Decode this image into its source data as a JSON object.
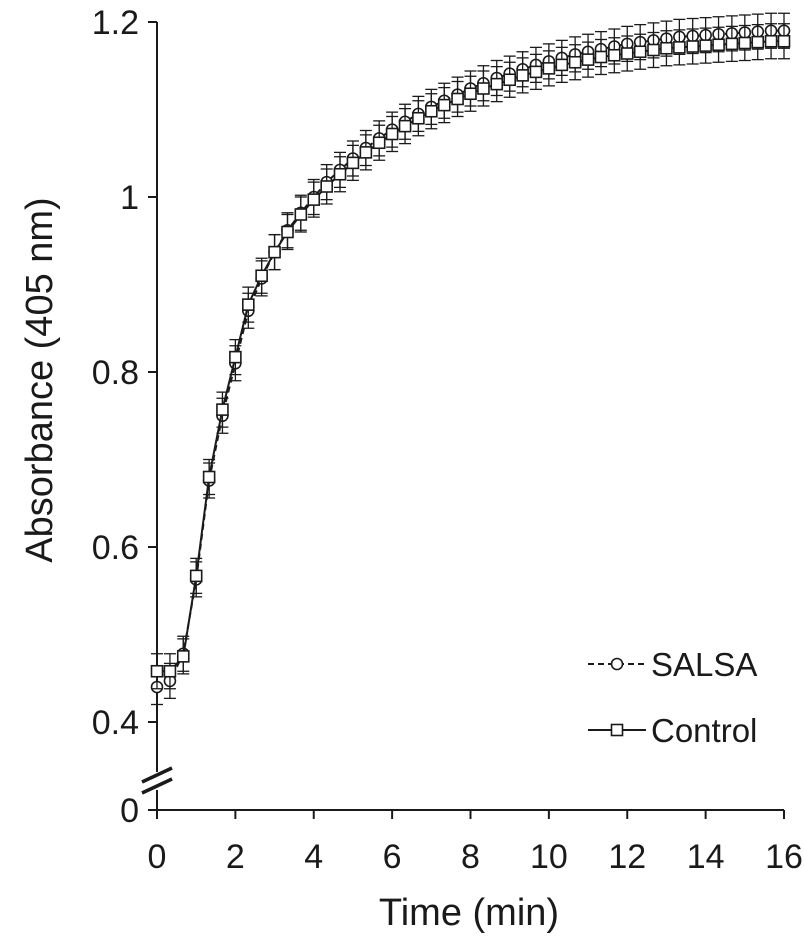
{
  "chart_data": {
    "type": "line",
    "title": "",
    "xlabel": "Time (min)",
    "ylabel": "Absorbance (405 nm)",
    "xlim": [
      0,
      16
    ],
    "ylim": [
      0.4,
      1.2
    ],
    "x_ticks": [
      "0",
      "2",
      "4",
      "6",
      "8",
      "10",
      "12",
      "14",
      "16"
    ],
    "y_ticks": [
      "0",
      "0.4",
      "0.6",
      "0.8",
      "1",
      "1.2"
    ],
    "y_axis_break": "between 0 and 0.4",
    "grid": false,
    "legend_position": "bottom-right",
    "x": [
      0,
      0.33,
      0.67,
      1,
      1.33,
      1.67,
      2,
      2.33,
      2.67,
      3,
      3.33,
      3.67,
      4,
      4.33,
      4.67,
      5,
      5.33,
      5.67,
      6,
      6.33,
      6.67,
      7,
      7.33,
      7.67,
      8,
      8.33,
      8.67,
      9,
      9.33,
      9.67,
      10,
      10.33,
      10.67,
      11,
      11.33,
      11.67,
      12,
      12.33,
      12.67,
      13,
      13.33,
      13.67,
      14,
      14.33,
      14.67,
      15,
      15.33,
      15.67,
      16
    ],
    "series": [
      {
        "name": "SALSA",
        "line_style": "dashed",
        "marker": "circle",
        "values": [
          0.44,
          0.447,
          0.478,
          0.563,
          0.676,
          0.75,
          0.81,
          0.87,
          0.907,
          0.937,
          0.962,
          0.982,
          1.0,
          1.017,
          1.031,
          1.044,
          1.056,
          1.067,
          1.077,
          1.086,
          1.095,
          1.103,
          1.11,
          1.117,
          1.124,
          1.13,
          1.136,
          1.141,
          1.146,
          1.151,
          1.155,
          1.159,
          1.163,
          1.166,
          1.169,
          1.172,
          1.175,
          1.177,
          1.179,
          1.181,
          1.183,
          1.184,
          1.185,
          1.186,
          1.187,
          1.188,
          1.189,
          1.19,
          1.19
        ],
        "error": 0.02
      },
      {
        "name": "Control",
        "line_style": "solid",
        "marker": "square",
        "values": [
          0.458,
          0.458,
          0.475,
          0.567,
          0.68,
          0.757,
          0.817,
          0.877,
          0.91,
          0.937,
          0.96,
          0.98,
          0.997,
          1.012,
          1.026,
          1.039,
          1.051,
          1.062,
          1.072,
          1.081,
          1.09,
          1.098,
          1.105,
          1.112,
          1.118,
          1.124,
          1.129,
          1.134,
          1.139,
          1.143,
          1.147,
          1.151,
          1.154,
          1.157,
          1.16,
          1.162,
          1.164,
          1.166,
          1.168,
          1.17,
          1.171,
          1.172,
          1.173,
          1.174,
          1.175,
          1.176,
          1.177,
          1.178,
          1.178
        ],
        "error": 0.02
      }
    ]
  }
}
